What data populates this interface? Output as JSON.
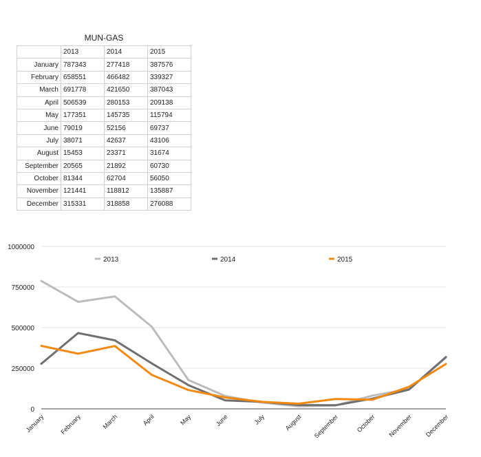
{
  "table": {
    "title": "MUN-GAS",
    "columns": [
      "2013",
      "2014",
      "2015"
    ],
    "rows": [
      {
        "month": "January",
        "values": [
          "787343",
          "277418",
          "387576"
        ]
      },
      {
        "month": "February",
        "values": [
          "658551",
          "466482",
          "339327"
        ]
      },
      {
        "month": "March",
        "values": [
          "691778",
          "421650",
          "387043"
        ]
      },
      {
        "month": "April",
        "values": [
          "506539",
          "280153",
          "209138"
        ]
      },
      {
        "month": "May",
        "values": [
          "177351",
          "145735",
          "115794"
        ]
      },
      {
        "month": "June",
        "values": [
          "79019",
          "52156",
          "69737"
        ]
      },
      {
        "month": "July",
        "values": [
          "38071",
          "42637",
          "43106"
        ]
      },
      {
        "month": "August",
        "values": [
          "15453",
          "23371",
          "31674"
        ]
      },
      {
        "month": "September",
        "values": [
          "20565",
          "21892",
          "60730"
        ]
      },
      {
        "month": "October",
        "values": [
          "81344",
          "62704",
          "56050"
        ]
      },
      {
        "month": "November",
        "values": [
          "121441",
          "118812",
          "135887"
        ]
      },
      {
        "month": "December",
        "values": [
          "315331",
          "318858",
          "276088"
        ]
      }
    ]
  },
  "chart_data": {
    "type": "line",
    "title": "",
    "xlabel": "",
    "ylabel": "",
    "categories": [
      "January",
      "February",
      "March",
      "April",
      "May",
      "June",
      "July",
      "August",
      "September",
      "October",
      "November",
      "December"
    ],
    "ylim": [
      0,
      1000000
    ],
    "yticks": [
      "0",
      "250000",
      "500000",
      "750000",
      "1000000"
    ],
    "grid": true,
    "legend_position": "top",
    "series": [
      {
        "name": "2013",
        "color": "#bcbcbc",
        "values": [
          787343,
          658551,
          691778,
          506539,
          177351,
          79019,
          38071,
          15453,
          20565,
          81344,
          121441,
          315331
        ]
      },
      {
        "name": "2014",
        "color": "#6f6f6f",
        "values": [
          277418,
          466482,
          421650,
          280153,
          145735,
          52156,
          42637,
          23371,
          21892,
          62704,
          118812,
          318858
        ]
      },
      {
        "name": "2015",
        "color": "#f28a12",
        "values": [
          387576,
          339327,
          387043,
          209138,
          115794,
          69737,
          43106,
          31674,
          60730,
          56050,
          135887,
          276088
        ]
      }
    ]
  }
}
